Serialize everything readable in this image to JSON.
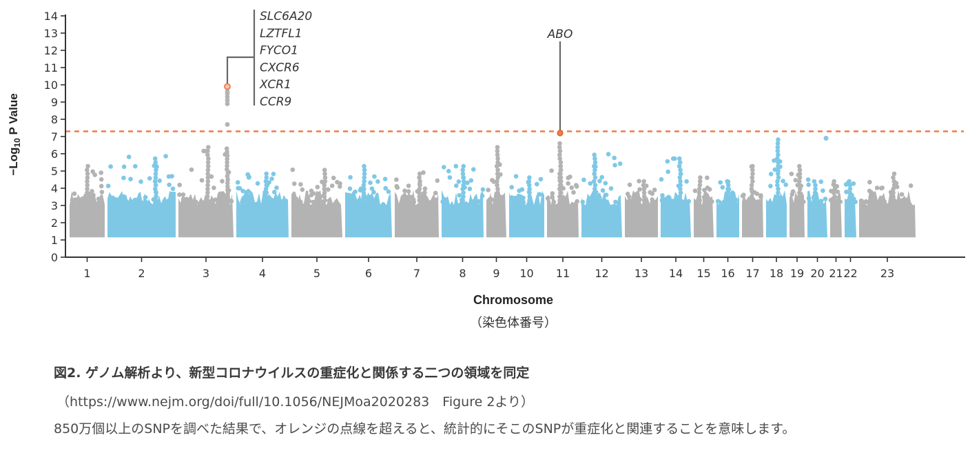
{
  "chart_data": {
    "type": "scatter",
    "subtype": "manhattan",
    "ylabel_prefix": "−Log",
    "ylabel_sub": "10",
    "ylabel_suffix": " P Value",
    "xlabel": "Chromosome",
    "xlabel_ja": "（染色体番号）",
    "ylim": [
      0,
      14
    ],
    "yticks": [
      "0",
      "1",
      "2",
      "3",
      "4",
      "5",
      "6",
      "7",
      "8",
      "9",
      "10",
      "11",
      "12",
      "13",
      "14"
    ],
    "threshold": 7.3,
    "colors": {
      "gray": "#b3b3b3",
      "blue": "#7ec8e6",
      "threshold": "#f07a4a",
      "highlight": "#f07a4a",
      "annotation": "#666666"
    },
    "chromosomes": [
      {
        "label": "1",
        "peak": 5.3,
        "color": "gray"
      },
      {
        "label": "2",
        "peak": 5.9,
        "color": "blue"
      },
      {
        "label": "3",
        "peak": 9.9,
        "color": "gray"
      },
      {
        "label": "4",
        "peak": 5.0,
        "color": "blue"
      },
      {
        "label": "5",
        "peak": 5.1,
        "color": "gray"
      },
      {
        "label": "6",
        "peak": 5.3,
        "color": "blue"
      },
      {
        "label": "7",
        "peak": 5.0,
        "color": "gray"
      },
      {
        "label": "8",
        "peak": 5.3,
        "color": "blue"
      },
      {
        "label": "9",
        "peak": 7.2,
        "color": "gray"
      },
      {
        "label": "10",
        "peak": 4.8,
        "color": "blue"
      },
      {
        "label": "11",
        "peak": 5.4,
        "color": "gray"
      },
      {
        "label": "12",
        "peak": 6.1,
        "color": "blue"
      },
      {
        "label": "13",
        "peak": 4.6,
        "color": "gray"
      },
      {
        "label": "14",
        "peak": 5.8,
        "color": "blue"
      },
      {
        "label": "15",
        "peak": 4.8,
        "color": "gray"
      },
      {
        "label": "16",
        "peak": 4.4,
        "color": "blue"
      },
      {
        "label": "17",
        "peak": 5.4,
        "color": "gray"
      },
      {
        "label": "18",
        "peak": 6.9,
        "color": "blue"
      },
      {
        "label": "19",
        "peak": 5.3,
        "color": "gray"
      },
      {
        "label": "20",
        "peak": 4.6,
        "color": "blue"
      },
      {
        "label": "21",
        "peak": 4.4,
        "color": "gray"
      },
      {
        "label": "22",
        "peak": 4.4,
        "color": "blue"
      },
      {
        "label": "23",
        "peak": 5.0,
        "color": "gray"
      }
    ],
    "annotations": [
      {
        "chromosome": "3",
        "value": 9.9,
        "genes": [
          "SLC6A20",
          "LZTFL1",
          "FYCO1",
          "CXCR6",
          "XCR1",
          "CCR9"
        ]
      },
      {
        "chromosome": "9",
        "value": 7.2,
        "genes": [
          "ABO"
        ]
      }
    ]
  },
  "caption": {
    "title": "図2. ゲノム解析より、新型コロナウイルスの重症化と関係する二つの領域を同定",
    "source": "（https://www.nejm.org/doi/full/10.1056/NEJMoa2020283　Figure 2より）",
    "description": "850万個以上のSNPを調べた結果で、オレンジの点線を超えると、統計的にそこのSNPが重症化と関連することを意味します。"
  }
}
